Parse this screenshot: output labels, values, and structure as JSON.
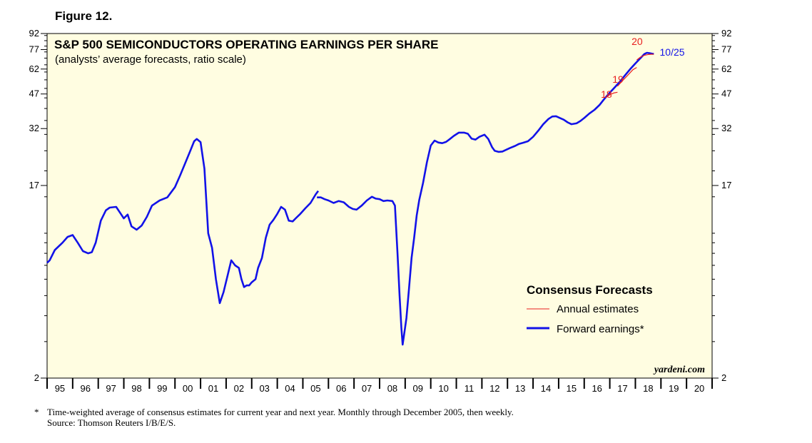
{
  "figure_label": "Figure 12.",
  "colors": {
    "plot_bg": "#fffde1",
    "forward": "#1212e8",
    "annual": "#e81e1e",
    "axis": "#000000"
  },
  "footnote": {
    "marker": "*",
    "line1": "Time-weighted average of consensus estimates for current year and next year. Monthly through December 2005, then weekly.",
    "line2": "Source: Thomson Reuters I/B/E/S."
  },
  "chart_data": {
    "type": "line",
    "title": "S&P 500 SEMICONDUCTORS OPERATING EARNINGS PER SHARE",
    "subtitle": "(analysts’ average forecasts, ratio scale)",
    "y_scale": "log",
    "ylim": [
      2,
      92
    ],
    "xlim": [
      1995.0,
      2021.0
    ],
    "y_ticks": [
      2,
      17,
      32,
      47,
      62,
      77,
      92
    ],
    "y_tick_labels": [
      "2",
      "17",
      "32",
      "47",
      "62",
      "77",
      "92"
    ],
    "x_tick_labels": [
      "95",
      "96",
      "97",
      "98",
      "99",
      "00",
      "01",
      "02",
      "03",
      "04",
      "05",
      "06",
      "07",
      "08",
      "09",
      "10",
      "11",
      "12",
      "13",
      "14",
      "15",
      "16",
      "17",
      "18",
      "19",
      "20"
    ],
    "legend": {
      "title": "Consensus Forecasts",
      "position": "lower-right",
      "items": [
        {
          "label": "Annual estimates",
          "series": "annual"
        },
        {
          "label": "Forward earnings*",
          "series": "forward"
        }
      ]
    },
    "credit": "yardeni.com",
    "series": [
      {
        "name": "Forward earnings",
        "key": "forward",
        "segments": [
          [
            [
              1995.0,
              7.2
            ],
            [
              1995.1,
              7.4
            ],
            [
              1995.3,
              8.3
            ],
            [
              1995.6,
              9.0
            ],
            [
              1995.8,
              9.6
            ],
            [
              1996.0,
              9.8
            ],
            [
              1996.2,
              9.0
            ],
            [
              1996.4,
              8.2
            ],
            [
              1996.6,
              8.0
            ],
            [
              1996.75,
              8.1
            ],
            [
              1996.9,
              9.0
            ],
            [
              1997.1,
              11.5
            ],
            [
              1997.3,
              12.9
            ],
            [
              1997.45,
              13.3
            ],
            [
              1997.7,
              13.4
            ],
            [
              1997.9,
              12.3
            ],
            [
              1998.0,
              11.8
            ],
            [
              1998.15,
              12.3
            ],
            [
              1998.3,
              10.8
            ],
            [
              1998.5,
              10.4
            ],
            [
              1998.7,
              10.9
            ],
            [
              1998.9,
              12.0
            ],
            [
              1999.1,
              13.6
            ],
            [
              1999.4,
              14.4
            ],
            [
              1999.7,
              14.9
            ],
            [
              2000.0,
              16.7
            ],
            [
              2000.2,
              19.0
            ],
            [
              2000.4,
              21.8
            ],
            [
              2000.6,
              25.0
            ],
            [
              2000.75,
              27.8
            ],
            [
              2000.85,
              28.5
            ],
            [
              2001.0,
              27.5
            ],
            [
              2001.15,
              20.5
            ],
            [
              2001.3,
              10.0
            ],
            [
              2001.45,
              8.5
            ],
            [
              2001.6,
              6.0
            ],
            [
              2001.75,
              4.6
            ],
            [
              2001.9,
              5.2
            ],
            [
              2002.05,
              6.2
            ],
            [
              2002.2,
              7.4
            ],
            [
              2002.35,
              7.0
            ],
            [
              2002.5,
              6.8
            ],
            [
              2002.6,
              6.0
            ],
            [
              2002.7,
              5.5
            ],
            [
              2002.8,
              5.6
            ],
            [
              2002.9,
              5.6
            ],
            [
              2003.0,
              5.8
            ],
            [
              2003.15,
              6.0
            ],
            [
              2003.25,
              6.8
            ],
            [
              2003.4,
              7.6
            ],
            [
              2003.55,
              9.5
            ],
            [
              2003.7,
              11.0
            ],
            [
              2003.85,
              11.6
            ],
            [
              2004.0,
              12.4
            ],
            [
              2004.15,
              13.4
            ],
            [
              2004.3,
              13.0
            ],
            [
              2004.45,
              11.5
            ],
            [
              2004.6,
              11.4
            ],
            [
              2004.75,
              11.9
            ],
            [
              2004.9,
              12.4
            ],
            [
              2005.1,
              13.2
            ],
            [
              2005.3,
              14.0
            ],
            [
              2005.5,
              15.4
            ],
            [
              2005.6,
              16.0
            ]
          ],
          [
            [
              2005.55,
              14.9
            ],
            [
              2005.7,
              14.9
            ],
            [
              2005.85,
              14.6
            ],
            [
              2006.0,
              14.4
            ],
            [
              2006.2,
              14.0
            ],
            [
              2006.4,
              14.3
            ],
            [
              2006.6,
              14.1
            ],
            [
              2006.8,
              13.4
            ],
            [
              2006.95,
              13.1
            ],
            [
              2007.1,
              13.0
            ],
            [
              2007.3,
              13.6
            ],
            [
              2007.5,
              14.4
            ],
            [
              2007.7,
              15.0
            ],
            [
              2007.85,
              14.7
            ],
            [
              2008.0,
              14.6
            ],
            [
              2008.15,
              14.3
            ],
            [
              2008.3,
              14.4
            ],
            [
              2008.5,
              14.3
            ],
            [
              2008.6,
              13.6
            ],
            [
              2008.7,
              8.0
            ],
            [
              2008.78,
              5.0
            ],
            [
              2008.85,
              3.5
            ],
            [
              2008.9,
              2.9
            ],
            [
              2008.95,
              3.2
            ],
            [
              2009.05,
              3.9
            ],
            [
              2009.15,
              5.4
            ],
            [
              2009.25,
              7.6
            ],
            [
              2009.35,
              9.5
            ],
            [
              2009.45,
              12.2
            ],
            [
              2009.55,
              14.5
            ],
            [
              2009.7,
              17.5
            ],
            [
              2009.85,
              22.0
            ],
            [
              2010.0,
              26.5
            ],
            [
              2010.15,
              28.0
            ],
            [
              2010.3,
              27.4
            ],
            [
              2010.45,
              27.2
            ],
            [
              2010.6,
              27.6
            ],
            [
              2010.75,
              28.5
            ],
            [
              2010.9,
              29.5
            ],
            [
              2011.1,
              30.6
            ],
            [
              2011.3,
              30.6
            ],
            [
              2011.45,
              30.2
            ],
            [
              2011.6,
              28.6
            ],
            [
              2011.75,
              28.3
            ],
            [
              2011.9,
              29.2
            ],
            [
              2012.1,
              29.9
            ],
            [
              2012.25,
              28.5
            ],
            [
              2012.4,
              26.0
            ],
            [
              2012.5,
              25.0
            ],
            [
              2012.65,
              24.7
            ],
            [
              2012.8,
              24.8
            ],
            [
              2012.95,
              25.3
            ],
            [
              2013.1,
              25.8
            ],
            [
              2013.3,
              26.4
            ],
            [
              2013.45,
              27.0
            ],
            [
              2013.6,
              27.3
            ],
            [
              2013.8,
              27.8
            ],
            [
              2014.0,
              29.2
            ],
            [
              2014.2,
              31.2
            ],
            [
              2014.4,
              33.6
            ],
            [
              2014.6,
              35.6
            ],
            [
              2014.75,
              36.6
            ],
            [
              2014.9,
              36.7
            ],
            [
              2015.05,
              36.0
            ],
            [
              2015.2,
              35.3
            ],
            [
              2015.35,
              34.3
            ],
            [
              2015.5,
              33.6
            ],
            [
              2015.7,
              33.9
            ],
            [
              2015.85,
              34.8
            ],
            [
              2016.0,
              36.0
            ],
            [
              2016.2,
              37.8
            ],
            [
              2016.4,
              39.4
            ],
            [
              2016.6,
              41.6
            ],
            [
              2016.8,
              44.7
            ],
            [
              2017.0,
              47.7
            ],
            [
              2017.2,
              50.7
            ],
            [
              2017.4,
              54.0
            ],
            [
              2017.6,
              57.9
            ],
            [
              2017.8,
              62.0
            ],
            [
              2018.0,
              66.0
            ],
            [
              2018.2,
              70.0
            ],
            [
              2018.35,
              73.2
            ],
            [
              2018.45,
              74.3
            ],
            [
              2018.55,
              74.0
            ],
            [
              2018.65,
              73.5
            ],
            [
              2018.72,
              73.4
            ]
          ]
        ]
      },
      {
        "name": "Annual estimates",
        "key": "annual",
        "segments": [
          [
            [
              2016.85,
              45.2
            ],
            [
              2017.0,
              46.6
            ],
            [
              2017.15,
              47.5
            ],
            [
              2017.3,
              47.9
            ]
          ],
          [
            [
              2017.3,
              51.2
            ],
            [
              2017.5,
              54.5
            ],
            [
              2017.7,
              57.8
            ],
            [
              2017.9,
              61.5
            ],
            [
              2018.05,
              63.1
            ]
          ],
          [
            [
              2018.05,
              68.5
            ],
            [
              2018.2,
              70.8
            ],
            [
              2018.35,
              72.2
            ],
            [
              2018.5,
              72.9
            ],
            [
              2018.65,
              73.1
            ],
            [
              2018.72,
              73.1
            ]
          ]
        ],
        "labels": [
          {
            "text": "18",
            "x": 2016.65,
            "y": 45.0
          },
          {
            "text": "19",
            "x": 2017.1,
            "y": 53.2
          },
          {
            "text": "20",
            "x": 2017.85,
            "y": 81.0
          }
        ]
      }
    ],
    "annotations": [
      {
        "text": "10/25",
        "x": 2018.95,
        "y": 75.0
      }
    ]
  }
}
